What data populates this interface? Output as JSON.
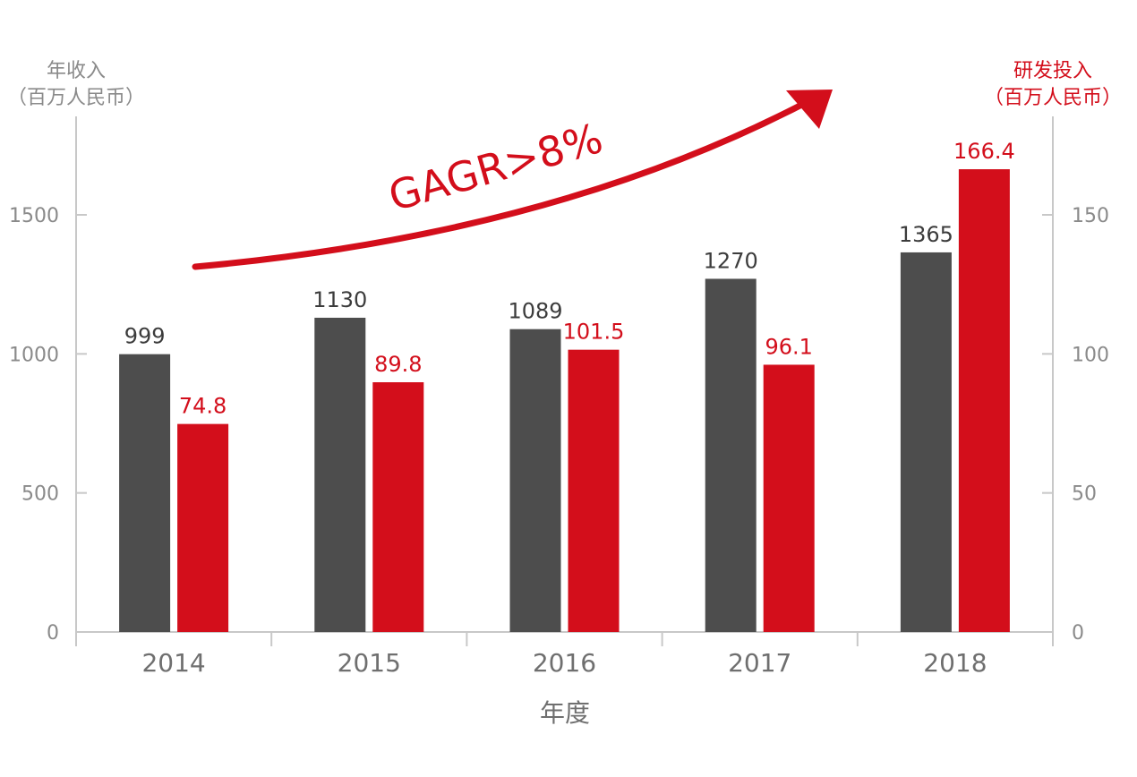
{
  "chart_data": {
    "type": "bar",
    "categories": [
      "2014",
      "2015",
      "2016",
      "2017",
      "2018"
    ],
    "series": [
      {
        "axis": "left",
        "color": "#4d4d4d",
        "values": [
          999,
          1130,
          1089,
          1270,
          1365
        ]
      },
      {
        "axis": "right",
        "color": "#d30e1b",
        "values": [
          74.8,
          89.8,
          101.5,
          96.1,
          166.4
        ]
      }
    ],
    "value_labels": {
      "revenue": [
        "999",
        "1130",
        "1089",
        "1270",
        "1365"
      ],
      "rd": [
        "74.8",
        "89.8",
        "101.5",
        "96.1",
        "166.4"
      ]
    },
    "y_left": {
      "label_line1": "年收入",
      "label_line2": "（百万人民币）",
      "ticks": [
        0,
        500,
        1000,
        1500
      ],
      "tick_labels": [
        "0",
        "500",
        "1000",
        "1500"
      ],
      "ylim": [
        0,
        1750
      ]
    },
    "y_right": {
      "label_line1": "研发投入",
      "label_line2": "（百万人民币）",
      "ticks": [
        0,
        50,
        100,
        150
      ],
      "tick_labels": [
        "0",
        "50",
        "100",
        "150"
      ],
      "ylim": [
        0,
        175
      ]
    },
    "xlabel": "年度",
    "annotation": "GAGR>8%",
    "grid": false
  }
}
